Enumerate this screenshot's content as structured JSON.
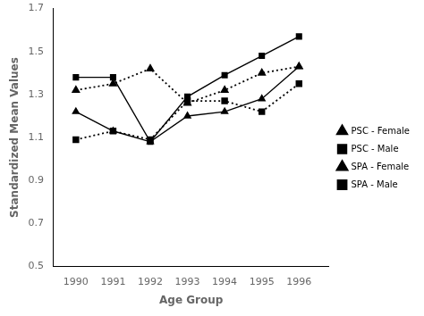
{
  "chart_data": {
    "type": "line",
    "x": [
      1990,
      1991,
      1992,
      1993,
      1994,
      1995,
      1996
    ],
    "series": [
      {
        "name": "PSC - Female",
        "color": "#000000",
        "marker": "triangle",
        "line_style": "solid",
        "values": [
          1.22,
          1.13,
          1.08,
          1.2,
          1.22,
          1.28,
          1.43
        ]
      },
      {
        "name": "PSC - Male",
        "color": "#000000",
        "marker": "square",
        "line_style": "solid",
        "values": [
          1.38,
          1.38,
          1.08,
          1.29,
          1.39,
          1.48,
          1.57
        ]
      },
      {
        "name": "SPA - Female",
        "color": "#000000",
        "marker": "triangle",
        "line_style": "dotted",
        "values": [
          1.32,
          1.35,
          1.42,
          1.26,
          1.32,
          1.4,
          1.43
        ]
      },
      {
        "name": "SPA - Male",
        "color": "#000000",
        "marker": "square",
        "line_style": "dotted",
        "values": [
          1.09,
          1.13,
          1.09,
          1.27,
          1.27,
          1.22,
          1.35
        ]
      }
    ],
    "xlim": [
      1989.4,
      1996.8
    ],
    "xticks": [
      1990,
      1991,
      1992,
      1993,
      1994,
      1995,
      1996
    ],
    "ylim": [
      0.5,
      1.7
    ],
    "yticks": [
      0.5,
      0.7,
      0.9,
      1.1,
      1.3,
      1.5,
      1.7
    ],
    "xlabel": "Age Group",
    "ylabel": "Standardized Mean Values",
    "grid": false,
    "legend": "right"
  }
}
